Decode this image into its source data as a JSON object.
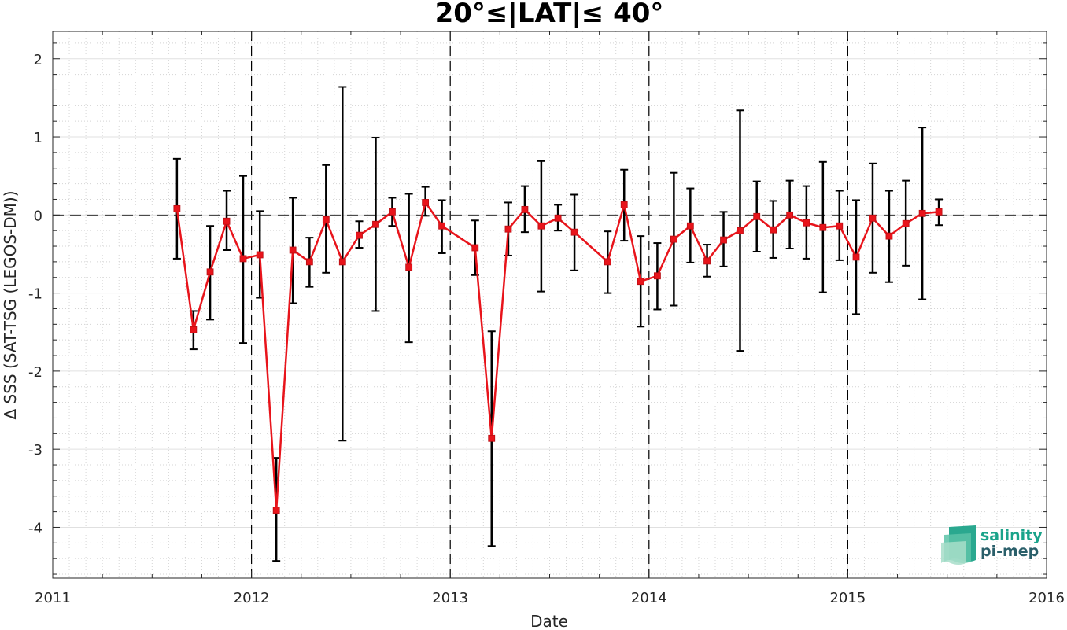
{
  "chart_data": {
    "type": "line",
    "title": "20°≤|LAT|≤ 40°",
    "xlabel": "Date",
    "ylabel": "Δ SSS (SAT-TSG (LEGOS-DM))",
    "xlim": [
      2011,
      2016
    ],
    "ylim": [
      -4.65,
      2.35
    ],
    "xticks": [
      "2011",
      "2012",
      "2013",
      "2014",
      "2015",
      "2016"
    ],
    "yticks": [
      "-4",
      "-3",
      "-2",
      "-1",
      "0",
      "1",
      "2"
    ],
    "grid": true,
    "year_separators": [
      2012,
      2013,
      2014,
      2015
    ],
    "reference_line": 0,
    "colors": {
      "line": "#e8141b",
      "marker": "#e8141b",
      "errorbar": "#000000"
    },
    "series": [
      {
        "x": [
          2011.625,
          2011.708,
          2011.792,
          2011.875,
          2011.958,
          2012.042,
          2012.125,
          2012.208,
          2012.292,
          2012.375,
          2012.458,
          2012.542,
          2012.625,
          2012.708,
          2012.792,
          2012.875,
          2012.958,
          2013.125,
          2013.208,
          2013.292,
          2013.375,
          2013.458,
          2013.542,
          2013.625,
          2013.792,
          2013.875,
          2013.958,
          2014.042,
          2014.125,
          2014.208,
          2014.292,
          2014.375,
          2014.458,
          2014.542,
          2014.625,
          2014.708,
          2014.792,
          2014.875,
          2014.958,
          2015.042,
          2015.125,
          2015.208,
          2015.292,
          2015.375,
          2015.458
        ],
        "y": [
          0.08,
          -1.47,
          -0.73,
          -0.08,
          -0.56,
          -0.51,
          -3.78,
          -0.45,
          -0.6,
          -0.06,
          -0.6,
          -0.26,
          -0.12,
          0.04,
          -0.67,
          0.16,
          -0.14,
          -0.42,
          -2.86,
          -0.18,
          0.07,
          -0.14,
          -0.04,
          -0.22,
          -0.6,
          0.13,
          -0.85,
          -0.78,
          -0.31,
          -0.14,
          -0.59,
          -0.32,
          -0.2,
          -0.02,
          -0.19,
          0.0,
          -0.1,
          -0.16,
          -0.14,
          -0.54,
          -0.04,
          -0.27,
          -0.11,
          0.02,
          0.04
        ],
        "y_low": [
          -0.56,
          -1.72,
          -1.34,
          -0.45,
          -1.64,
          -1.06,
          -4.43,
          -1.13,
          -0.92,
          -0.74,
          -2.89,
          -0.42,
          -1.23,
          -0.14,
          -1.63,
          -0.01,
          -0.49,
          -0.77,
          -4.24,
          -0.52,
          -0.22,
          -0.98,
          -0.2,
          -0.71,
          -1.0,
          -0.33,
          -1.43,
          -1.21,
          -1.16,
          -0.61,
          -0.79,
          -0.66,
          -1.74,
          -0.47,
          -0.55,
          -0.43,
          -0.56,
          -0.99,
          -0.58,
          -1.27,
          -0.74,
          -0.86,
          -0.65,
          -1.08,
          -0.13
        ],
        "y_high": [
          0.72,
          -1.23,
          -0.14,
          0.31,
          0.5,
          0.05,
          -3.11,
          0.22,
          -0.29,
          0.64,
          1.64,
          -0.08,
          0.99,
          0.22,
          0.27,
          0.36,
          0.19,
          -0.07,
          -1.49,
          0.16,
          0.37,
          0.69,
          0.13,
          0.26,
          -0.21,
          0.58,
          -0.27,
          -0.36,
          0.54,
          0.34,
          -0.38,
          0.04,
          1.34,
          0.43,
          0.18,
          0.44,
          0.37,
          0.68,
          0.31,
          0.19,
          0.66,
          0.31,
          0.44,
          1.12,
          0.2
        ]
      }
    ]
  },
  "logo": {
    "line1": "salinity",
    "line2": "pi-mep"
  }
}
